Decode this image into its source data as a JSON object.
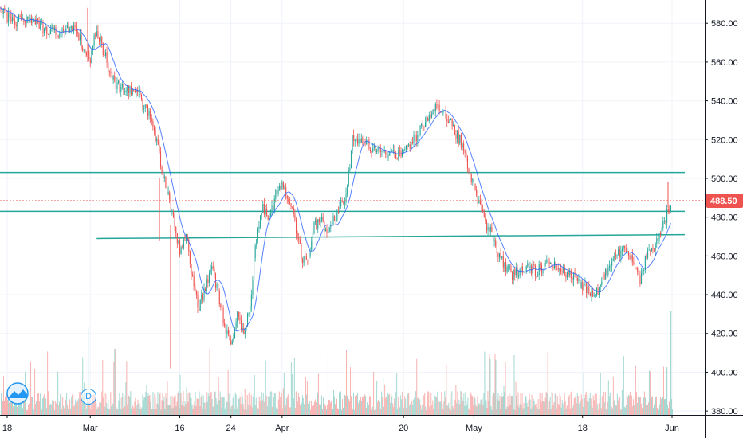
{
  "colors": {
    "up": "#26a69a",
    "down": "#ef5350",
    "ma": "#2962ff",
    "hline": "#26a69a",
    "grid": "#f0f3fa",
    "axis_border": "#131722",
    "price_tag": "#ef5350",
    "up_volume": "#a3d9d2",
    "down_volume": "#f7b2b1"
  },
  "badge_label": "D",
  "logo_name": "tradingview-logo-icon",
  "chart_data": {
    "type": "candlestick",
    "ylim": [
      378,
      592
    ],
    "y_ticks": [
      "380.00",
      "400.00",
      "420.00",
      "440.00",
      "460.00",
      "480.00",
      "500.00",
      "520.00",
      "540.00",
      "560.00",
      "580.00"
    ],
    "x_ticks": [
      {
        "label": "18",
        "date": "2020-02-18"
      },
      {
        "label": "Mar",
        "date": "2020-03-02"
      },
      {
        "label": "16",
        "date": "2020-03-16"
      },
      {
        "label": "24",
        "date": "2020-03-24"
      },
      {
        "label": "Apr",
        "date": "2020-04-01"
      },
      {
        "label": "20",
        "date": "2020-04-20"
      },
      {
        "label": "May",
        "date": "2020-05-01"
      },
      {
        "label": "18",
        "date": "2020-05-18"
      },
      {
        "label": "Jun",
        "date": "2020-06-01"
      }
    ],
    "last_price": {
      "label": "488.50",
      "value": 488.5
    },
    "price_path": [
      [
        "2020-02-17",
        587
      ],
      [
        "2020-02-19",
        580
      ],
      [
        "2020-02-21",
        583
      ],
      [
        "2020-02-24",
        577
      ],
      [
        "2020-02-26",
        575
      ],
      [
        "2020-02-28",
        579
      ],
      [
        "2020-03-02",
        562
      ],
      [
        "2020-03-03",
        577
      ],
      [
        "2020-03-05",
        556
      ],
      [
        "2020-03-06",
        548
      ],
      [
        "2020-03-09",
        545
      ],
      [
        "2020-03-10",
        540
      ],
      [
        "2020-03-11",
        535
      ],
      [
        "2020-03-12",
        525
      ],
      [
        "2020-03-13",
        508
      ],
      [
        "2020-03-15",
        480
      ],
      [
        "2020-03-16",
        462
      ],
      [
        "2020-03-17",
        470
      ],
      [
        "2020-03-18",
        448
      ],
      [
        "2020-03-19",
        432
      ],
      [
        "2020-03-20",
        445
      ],
      [
        "2020-03-21",
        455
      ],
      [
        "2020-03-22",
        440
      ],
      [
        "2020-03-23",
        425
      ],
      [
        "2020-03-24",
        412
      ],
      [
        "2020-03-25",
        430
      ],
      [
        "2020-03-26",
        418
      ],
      [
        "2020-03-27",
        435
      ],
      [
        "2020-03-28",
        470
      ],
      [
        "2020-03-29",
        485
      ],
      [
        "2020-03-30",
        478
      ],
      [
        "2020-03-31",
        492
      ],
      [
        "2020-04-01",
        498
      ],
      [
        "2020-04-02",
        490
      ],
      [
        "2020-04-03",
        478
      ],
      [
        "2020-04-04",
        460
      ],
      [
        "2020-04-05",
        455
      ],
      [
        "2020-04-06",
        475
      ],
      [
        "2020-04-07",
        480
      ],
      [
        "2020-04-08",
        470
      ],
      [
        "2020-04-09",
        478
      ],
      [
        "2020-04-10",
        485
      ],
      [
        "2020-04-11",
        490
      ],
      [
        "2020-04-12",
        520
      ],
      [
        "2020-04-14",
        518
      ],
      [
        "2020-04-16",
        514
      ],
      [
        "2020-04-18",
        512
      ],
      [
        "2020-04-20",
        512
      ],
      [
        "2020-04-22",
        522
      ],
      [
        "2020-04-24",
        532
      ],
      [
        "2020-04-25",
        538
      ],
      [
        "2020-04-27",
        530
      ],
      [
        "2020-04-28",
        525
      ],
      [
        "2020-04-29",
        518
      ],
      [
        "2020-04-30",
        506
      ],
      [
        "2020-05-01",
        495
      ],
      [
        "2020-05-02",
        485
      ],
      [
        "2020-05-03",
        475
      ],
      [
        "2020-05-04",
        470
      ],
      [
        "2020-05-05",
        460
      ],
      [
        "2020-05-06",
        455
      ],
      [
        "2020-05-07",
        450
      ],
      [
        "2020-05-09",
        455
      ],
      [
        "2020-05-11",
        452
      ],
      [
        "2020-05-13",
        458
      ],
      [
        "2020-05-15",
        452
      ],
      [
        "2020-05-17",
        448
      ],
      [
        "2020-05-19",
        442
      ],
      [
        "2020-05-20",
        440
      ],
      [
        "2020-05-22",
        453
      ],
      [
        "2020-05-24",
        463
      ],
      [
        "2020-05-25",
        464
      ],
      [
        "2020-05-27",
        448
      ],
      [
        "2020-05-28",
        460
      ],
      [
        "2020-05-29",
        465
      ],
      [
        "2020-05-30",
        470
      ],
      [
        "2020-06-01",
        488.5
      ]
    ],
    "horizontal_lines": [
      {
        "from": "2020-02-10",
        "to": "2020-06-03",
        "value": 503
      },
      {
        "from": "2020-02-10",
        "to": "2020-06-03",
        "value": 483
      },
      {
        "from": "2020-03-03",
        "to": "2020-06-03",
        "value": 469,
        "end_value": 471
      }
    ]
  }
}
